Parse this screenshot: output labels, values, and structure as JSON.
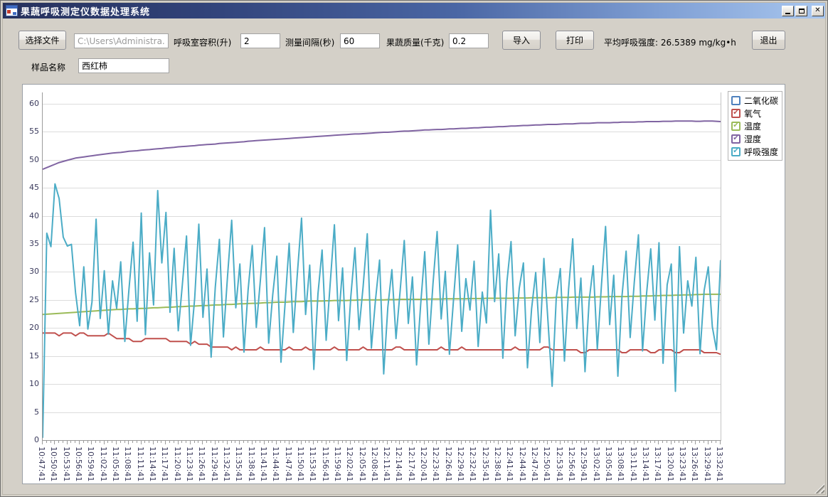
{
  "window": {
    "title": "果蔬呼吸测定仪数据处理系统",
    "controls": {
      "minimize": "最小化",
      "maximize": "最大化",
      "close": "关闭"
    }
  },
  "toolbar": {
    "select_file_label": "选择文件",
    "file_path_value": "C:\\Users\\Administra...",
    "chamber_volume_label": "呼吸室容积(升)",
    "chamber_volume_value": "2",
    "interval_label": "测量间隔(秒)",
    "interval_value": "60",
    "mass_label": "果蔬质量(千克)",
    "mass_value": "0.2",
    "import_label": "导入",
    "print_label": "打印",
    "avg_label": "平均呼吸强度:",
    "avg_value": "26.5389 mg/kg•h",
    "exit_label": "退出",
    "sample_label": "样品名称",
    "sample_value": "西红柿"
  },
  "chart_data": {
    "type": "line",
    "title": "",
    "xlabel": "",
    "ylabel": "",
    "ylim": [
      0,
      62
    ],
    "y_ticks": [
      0,
      5,
      10,
      15,
      20,
      25,
      30,
      35,
      40,
      45,
      50,
      55,
      60
    ],
    "grid": true,
    "legend_position": "top-right",
    "points_per_labeled_tick": 3,
    "x_tick_labels": [
      "10:47:41",
      "10:50:41",
      "10:53:41",
      "10:56:41",
      "10:59:41",
      "11:02:41",
      "11:05:41",
      "11:08:41",
      "11:11:41",
      "11:14:41",
      "11:17:41",
      "11:20:41",
      "11:23:41",
      "11:26:41",
      "11:29:41",
      "11:32:41",
      "11:35:41",
      "11:38:41",
      "11:41:41",
      "11:44:41",
      "11:47:41",
      "11:50:41",
      "11:53:41",
      "11:56:41",
      "11:59:41",
      "12:02:41",
      "12:05:41",
      "12:08:41",
      "12:11:41",
      "12:14:41",
      "12:17:41",
      "12:20:41",
      "12:23:41",
      "12:26:41",
      "12:29:41",
      "12:32:41",
      "12:35:41",
      "12:38:41",
      "12:41:41",
      "12:44:41",
      "12:47:41",
      "12:50:41",
      "12:53:41",
      "12:56:41",
      "12:59:41",
      "13:02:41",
      "13:05:41",
      "13:08:41",
      "13:11:41",
      "13:14:41",
      "13:17:41",
      "13:20:41",
      "13:23:41",
      "13:26:41",
      "13:29:41",
      "13:32:41"
    ],
    "legend": [
      {
        "label": "二氧化碳",
        "color": "#4F81BD",
        "checked": false
      },
      {
        "label": "氧气",
        "color": "#C0504D",
        "checked": true
      },
      {
        "label": "温度",
        "color": "#9BBB59",
        "checked": true
      },
      {
        "label": "湿度",
        "color": "#8064A2",
        "checked": true
      },
      {
        "label": "呼吸强度",
        "color": "#4BACC6",
        "checked": true
      }
    ],
    "series": [
      {
        "name": "氧气",
        "color": "#C0504D",
        "values": [
          19.1,
          19.1,
          19.1,
          19.1,
          18.6,
          19.1,
          19.1,
          19.1,
          18.6,
          19.1,
          19.1,
          18.6,
          18.6,
          18.6,
          18.6,
          18.6,
          19.1,
          18.6,
          18.1,
          18.1,
          18.1,
          18.1,
          17.6,
          17.6,
          17.6,
          18.1,
          18.1,
          18.1,
          18.1,
          18.1,
          18.1,
          17.6,
          17.6,
          17.6,
          17.6,
          17.6,
          17.1,
          17.6,
          17.1,
          17.1,
          17.1,
          16.6,
          16.6,
          16.6,
          16.6,
          16.6,
          16.1,
          16.6,
          16.1,
          16.1,
          16.1,
          16.1,
          16.1,
          16.6,
          16.1,
          16.1,
          16.1,
          16.1,
          16.1,
          16.1,
          16.6,
          16.1,
          16.1,
          16.1,
          16.6,
          16.1,
          16.1,
          16.1,
          16.1,
          16.1,
          16.1,
          16.6,
          16.1,
          16.1,
          16.1,
          16.1,
          16.1,
          16.1,
          16.6,
          16.1,
          16.1,
          16.1,
          16.1,
          16.1,
          16.1,
          16.1,
          16.6,
          16.6,
          16.1,
          16.1,
          16.1,
          16.1,
          16.1,
          16.1,
          16.1,
          16.1,
          16.1,
          16.6,
          16.1,
          16.1,
          16.1,
          16.1,
          16.6,
          16.1,
          16.1,
          16.1,
          16.1,
          16.1,
          16.1,
          16.1,
          16.1,
          16.1,
          16.1,
          16.1,
          16.1,
          16.6,
          16.1,
          16.1,
          16.1,
          16.1,
          16.1,
          16.1,
          16.6,
          16.6,
          16.1,
          16.1,
          16.1,
          16.1,
          16.1,
          16.1,
          16.1,
          15.6,
          15.6,
          16.1,
          16.1,
          16.1,
          16.1,
          16.1,
          16.1,
          16.1,
          16.1,
          15.6,
          15.6,
          16.1,
          16.1,
          16.1,
          16.1,
          16.1,
          15.6,
          15.6,
          16.1,
          16.1,
          16.1,
          16.1,
          15.6,
          15.6,
          16.1,
          16.1,
          16.1,
          16.1,
          16.1,
          15.6,
          15.6,
          15.6,
          15.6,
          15.3
        ]
      },
      {
        "name": "温度",
        "color": "#9BBB59",
        "values": [
          22.4,
          22.45,
          22.5,
          22.55,
          22.6,
          22.65,
          22.7,
          22.75,
          22.8,
          22.85,
          22.9,
          22.95,
          23.0,
          23.05,
          23.1,
          23.15,
          23.2,
          23.25,
          23.3,
          23.3,
          23.35,
          23.4,
          23.4,
          23.45,
          23.5,
          23.5,
          23.55,
          23.6,
          23.6,
          23.65,
          23.7,
          23.7,
          23.75,
          23.8,
          23.8,
          23.85,
          23.9,
          23.9,
          23.95,
          24.0,
          24.0,
          24.05,
          24.1,
          24.1,
          24.15,
          24.2,
          24.2,
          24.25,
          24.3,
          24.3,
          24.35,
          24.4,
          24.4,
          24.45,
          24.5,
          24.5,
          24.55,
          24.6,
          24.6,
          24.6,
          24.65,
          24.7,
          24.7,
          24.7,
          24.75,
          24.8,
          24.8,
          24.8,
          24.8,
          24.85,
          24.85,
          24.9,
          24.9,
          24.9,
          24.9,
          24.95,
          24.95,
          25.0,
          25.0,
          25.0,
          25.0,
          25.0,
          25.0,
          25.0,
          25.05,
          25.05,
          25.05,
          25.1,
          25.1,
          25.1,
          25.1,
          25.1,
          25.1,
          25.1,
          25.15,
          25.15,
          25.15,
          25.15,
          25.2,
          25.2,
          25.2,
          25.2,
          25.2,
          25.2,
          25.25,
          25.25,
          25.25,
          25.25,
          25.3,
          25.3,
          25.3,
          25.3,
          25.3,
          25.3,
          25.3,
          25.35,
          25.35,
          25.35,
          25.35,
          25.4,
          25.4,
          25.4,
          25.4,
          25.4,
          25.4,
          25.45,
          25.45,
          25.45,
          25.45,
          25.5,
          25.5,
          25.5,
          25.5,
          25.5,
          25.5,
          25.55,
          25.55,
          25.55,
          25.6,
          25.6,
          25.6,
          25.6,
          25.6,
          25.65,
          25.65,
          25.65,
          25.7,
          25.7,
          25.7,
          25.75,
          25.75,
          25.8,
          25.8,
          25.8,
          25.85,
          25.85,
          25.9,
          25.9,
          25.9,
          25.95,
          25.95,
          26.0,
          26.0,
          26.0,
          26.0,
          26.0
        ]
      },
      {
        "name": "湿度",
        "color": "#8064A2",
        "values": [
          48.3,
          48.6,
          48.9,
          49.2,
          49.5,
          49.7,
          49.9,
          50.1,
          50.3,
          50.4,
          50.5,
          50.6,
          50.7,
          50.8,
          50.9,
          51.0,
          51.1,
          51.2,
          51.25,
          51.3,
          51.4,
          51.5,
          51.55,
          51.6,
          51.7,
          51.75,
          51.8,
          51.9,
          51.95,
          52.0,
          52.1,
          52.15,
          52.2,
          52.3,
          52.35,
          52.4,
          52.45,
          52.5,
          52.6,
          52.65,
          52.7,
          52.75,
          52.8,
          52.9,
          52.95,
          53.0,
          53.05,
          53.1,
          53.15,
          53.2,
          53.3,
          53.35,
          53.4,
          53.45,
          53.5,
          53.55,
          53.6,
          53.65,
          53.7,
          53.75,
          53.8,
          53.85,
          53.9,
          53.95,
          54.0,
          54.05,
          54.1,
          54.15,
          54.2,
          54.25,
          54.3,
          54.35,
          54.4,
          54.45,
          54.5,
          54.55,
          54.6,
          54.6,
          54.65,
          54.7,
          54.75,
          54.8,
          54.85,
          54.9,
          54.9,
          54.95,
          55.0,
          55.05,
          55.1,
          55.1,
          55.15,
          55.2,
          55.25,
          55.3,
          55.3,
          55.35,
          55.4,
          55.4,
          55.45,
          55.5,
          55.5,
          55.55,
          55.6,
          55.6,
          55.65,
          55.7,
          55.7,
          55.75,
          55.8,
          55.8,
          55.85,
          55.9,
          55.9,
          55.95,
          56.0,
          56.0,
          56.05,
          56.1,
          56.1,
          56.15,
          56.2,
          56.2,
          56.25,
          56.3,
          56.3,
          56.3,
          56.35,
          56.4,
          56.4,
          56.4,
          56.45,
          56.5,
          56.5,
          56.5,
          56.55,
          56.6,
          56.6,
          56.6,
          56.6,
          56.65,
          56.65,
          56.7,
          56.7,
          56.7,
          56.7,
          56.75,
          56.75,
          56.8,
          56.8,
          56.8,
          56.8,
          56.85,
          56.85,
          56.85,
          56.9,
          56.9,
          56.9,
          56.9,
          56.9,
          56.85,
          56.85,
          56.9,
          56.9,
          56.9,
          56.85,
          56.8
        ]
      },
      {
        "name": "呼吸强度",
        "color": "#4BACC6",
        "values": [
          0.4,
          36.9,
          34.5,
          45.7,
          43.1,
          36.2,
          34.6,
          34.9,
          26.3,
          20.4,
          30.9,
          19.8,
          24.6,
          39.4,
          21.7,
          30.2,
          18.9,
          28.4,
          23.5,
          31.8,
          17.6,
          26.9,
          35.3,
          21.2,
          40.5,
          18.8,
          33.4,
          24.1,
          44.5,
          31.6,
          40.6,
          22.8,
          34.2,
          19.5,
          27.8,
          36.4,
          16.9,
          25.3,
          38.5,
          21.9,
          30.5,
          14.8,
          27.2,
          35.8,
          18.4,
          29.3,
          39.2,
          23.6,
          31.4,
          15.7,
          26.8,
          34.7,
          20.1,
          28.6,
          37.9,
          17.3,
          25.9,
          32.8,
          13.9,
          24.4,
          35.1,
          19.2,
          29.8,
          39.6,
          22.4,
          31.2,
          12.6,
          26.1,
          33.9,
          17.8,
          28.1,
          38.4,
          21.3,
          30.7,
          14.2,
          25.6,
          34.3,
          19.7,
          27.4,
          36.8,
          16.4,
          24.9,
          32.1,
          11.8,
          23.7,
          30.4,
          18.1,
          26.6,
          35.6,
          20.8,
          29.1,
          13.4,
          24.2,
          33.6,
          17.1,
          27.9,
          37.2,
          21.6,
          30.1,
          15.3,
          25.1,
          34.8,
          19.4,
          28.8,
          23.2,
          31.9,
          16.7,
          26.4,
          20.9,
          41.0,
          24.7,
          33.2,
          14.6,
          28.3,
          35.4,
          18.6,
          27.1,
          31.6,
          12.9,
          23.4,
          29.9,
          17.4,
          32.4,
          21.1,
          9.6,
          25.4,
          30.6,
          14.1,
          26.9,
          35.9,
          19.9,
          28.9,
          12.2,
          24.8,
          31.1,
          16.2,
          27.6,
          38.1,
          20.6,
          29.4,
          11.4,
          25.7,
          33.7,
          18.3,
          28.2,
          36.6,
          15.9,
          26.2,
          34.1,
          21.4,
          35.2,
          13.7,
          27.7,
          31.4,
          8.7,
          34.5,
          19.1,
          28.4,
          23.9,
          32.6,
          15.4,
          26.7,
          30.9,
          20.2,
          16.1,
          32.1
        ]
      }
    ]
  }
}
